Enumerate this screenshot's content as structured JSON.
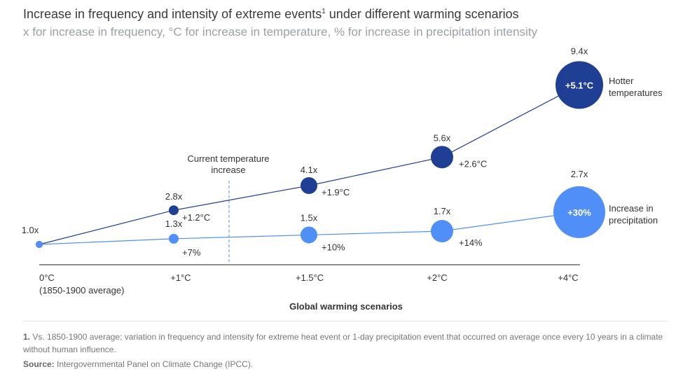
{
  "header": {
    "title": "Increase in frequency and intensity of extreme events",
    "title_sup": "1",
    "title_rest": " under different warming scenarios",
    "subtitle": "x for increase in frequency, °C for increase in temperature, % for increase in precipitation intensity"
  },
  "chart_data": {
    "type": "scatter",
    "title": "Increase in frequency and intensity of extreme events under different warming scenarios",
    "xlabel": "Global warming scenarios",
    "categories": [
      "0°C",
      "+1°C",
      "+1.5°C",
      "+2°C",
      "+4°C"
    ],
    "baseline_note": "(1850-1900 average)",
    "marker_label": "Current temperature increase",
    "marker_label_lines": [
      "Current temperature",
      "increase"
    ],
    "series": [
      {
        "name": "Hotter temperatures",
        "name_lines": [
          "Hotter",
          "temperatures"
        ],
        "color": "#1f3f94",
        "frequency": [
          1.0,
          2.8,
          4.1,
          5.6,
          9.4
        ],
        "frequency_labels": [
          "1.0x",
          "2.8x",
          "4.1x",
          "5.6x",
          "9.4x"
        ],
        "intensity_labels": [
          "",
          "+1.2°C",
          "+1.9°C",
          "+2.6°C",
          "+5.1°C"
        ]
      },
      {
        "name": "Increase in precipitation",
        "name_lines": [
          "Increase in",
          "precipitation"
        ],
        "color": "#4f8ff7",
        "frequency": [
          1.0,
          1.3,
          1.5,
          1.7,
          2.7
        ],
        "frequency_labels": [
          "",
          "1.3x",
          "1.5x",
          "1.7x",
          "2.7x"
        ],
        "intensity_labels": [
          "",
          "+7%",
          "+10%",
          "+14%",
          "+30%"
        ]
      }
    ]
  },
  "footnote": {
    "marker": "1.",
    "text": " Vs. 1850-1900 average; variation in frequency and intensity for extreme heat event or 1-day precipitation event that occurred on average once every 10 years in a climate without human influence."
  },
  "source": {
    "label": "Source:",
    "text": " Intergovernmental Panel on Climate Change (IPCC)."
  }
}
